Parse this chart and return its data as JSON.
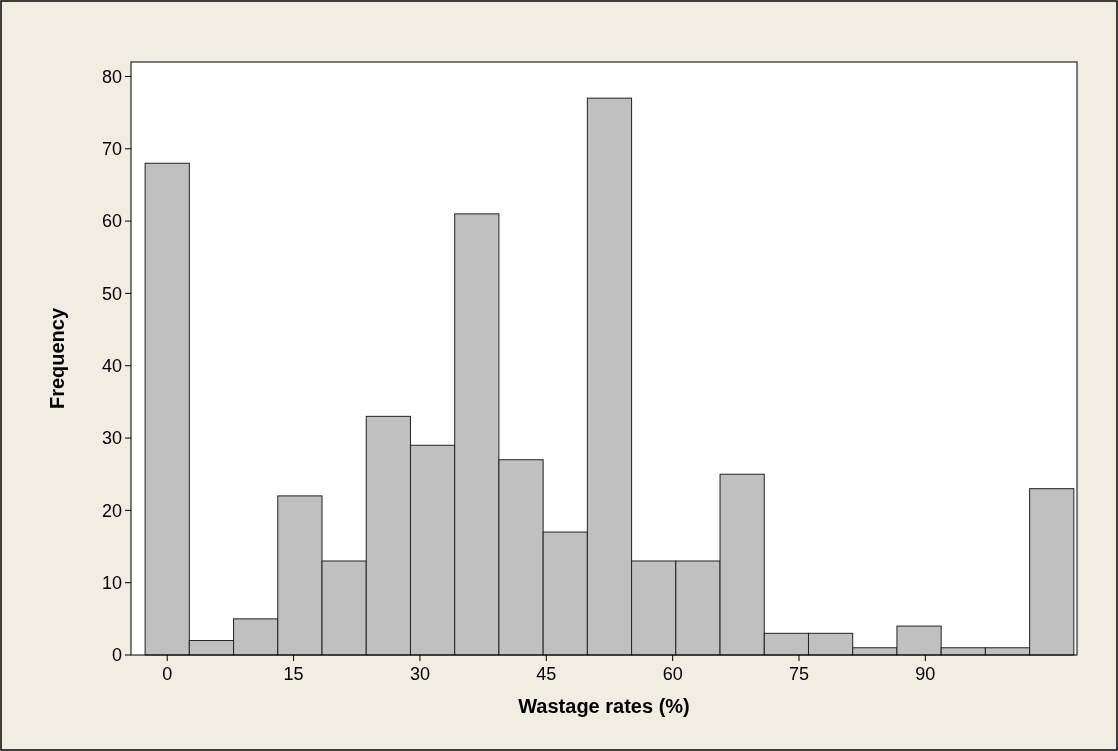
{
  "chart_data": {
    "type": "histogram",
    "xlabel": "Wastage rates (%)",
    "ylabel": "Frequency",
    "bins": [
      -2.625,
      2.625,
      7.875,
      13.125,
      18.375,
      23.625,
      28.875,
      34.125,
      39.375,
      44.625,
      49.875,
      55.125,
      60.375,
      65.625,
      70.875,
      76.125,
      81.375,
      86.625,
      91.875,
      97.125,
      102.375,
      107.625
    ],
    "values": [
      68,
      2,
      5,
      22,
      13,
      33,
      29,
      61,
      27,
      17,
      77,
      13,
      13,
      25,
      3,
      3,
      1,
      4,
      1,
      1,
      23
    ],
    "color": "#c0c0c0",
    "xlim": [
      -4.3,
      108
    ],
    "xticks": [
      0,
      15,
      30,
      45,
      60,
      75,
      90
    ],
    "ylim": [
      0,
      82
    ],
    "yticks": [
      0,
      10,
      20,
      30,
      40,
      50,
      60,
      70,
      80
    ],
    "grid": false
  }
}
